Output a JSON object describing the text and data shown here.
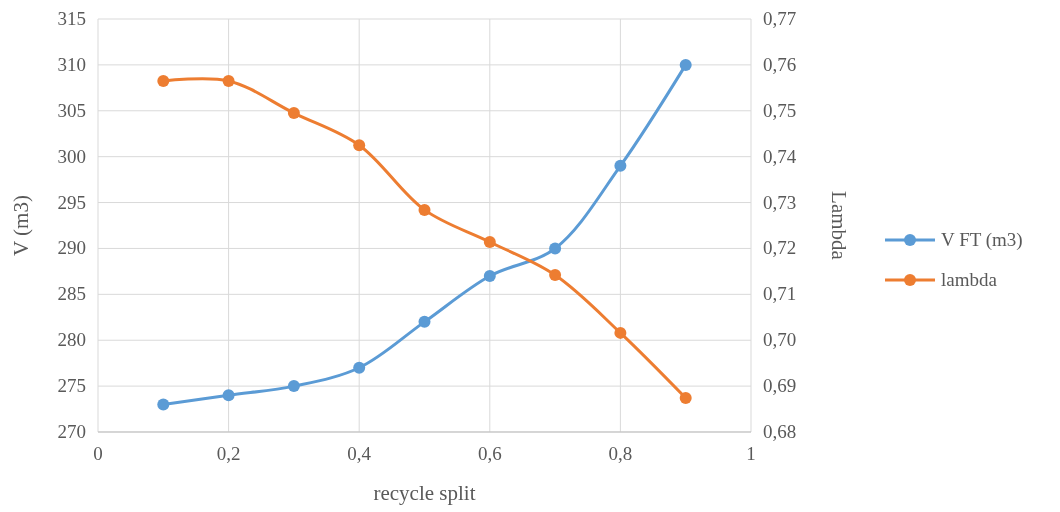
{
  "chart_data": {
    "type": "line",
    "xlabel": "recycle split",
    "ylabel": "V (m3)",
    "y2label": "Lambda",
    "series": [
      {
        "name": "V FT (m3)",
        "color": "#5b9bd5",
        "x": [
          0.1,
          0.2,
          0.3,
          0.4,
          0.5,
          0.6,
          0.7,
          0.8,
          0.9
        ],
        "values": [
          273,
          274,
          275,
          277,
          282,
          287,
          290,
          299,
          310
        ]
      },
      {
        "name": "lambda",
        "color": "#ed7d31",
        "axis": "y2",
        "x": [
          0.1,
          0.2,
          0.3,
          0.4,
          0.5,
          0.6,
          0.7,
          0.8,
          0.9
        ],
        "values": [
          0.7565,
          0.7565,
          0.7495,
          0.7425,
          0.7284,
          0.7214,
          0.7142,
          0.7016,
          0.6874
        ]
      }
    ],
    "xlim": [
      0,
      1
    ],
    "xticks": [
      0,
      {
        "value": 0.2,
        "label": "0,2"
      },
      {
        "value": 0.4,
        "label": "0,4"
      },
      {
        "value": 0.6,
        "label": "0,6"
      },
      {
        "value": 0.8,
        "label": "0,8"
      },
      1
    ],
    "ylim": [
      270,
      315
    ],
    "yticks": [
      270,
      275,
      280,
      285,
      290,
      295,
      300,
      305,
      310,
      315
    ],
    "y2lim": [
      0.68,
      0.77
    ],
    "y2ticks": [
      {
        "value": 0.68,
        "label": "0,68"
      },
      {
        "value": 0.69,
        "label": "0,69"
      },
      {
        "value": 0.7,
        "label": "0,70"
      },
      {
        "value": 0.71,
        "label": "0,71"
      },
      {
        "value": 0.72,
        "label": "0,72"
      },
      {
        "value": 0.73,
        "label": "0,73"
      },
      {
        "value": 0.74,
        "label": "0,74"
      },
      {
        "value": 0.75,
        "label": "0,75"
      },
      {
        "value": 0.76,
        "label": "0,76"
      },
      {
        "value": 0.77,
        "label": "0,77"
      }
    ],
    "grid": true,
    "legend": "right",
    "marker": "circle",
    "line_style": "solid"
  }
}
